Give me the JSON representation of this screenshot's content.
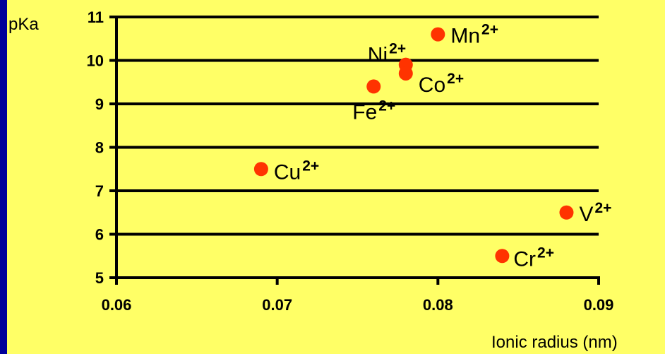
{
  "chart_data": {
    "type": "scatter",
    "ylabel": "pKa",
    "xlabel": "Ionic radius (nm)",
    "xlim": [
      0.06,
      0.09
    ],
    "ylim": [
      5,
      11
    ],
    "x_ticks": [
      0.06,
      0.07,
      0.08,
      0.09
    ],
    "x_tick_labels": [
      "0.06",
      "0.07",
      "0.08",
      "0.09"
    ],
    "y_ticks": [
      5,
      6,
      7,
      8,
      9,
      10,
      11
    ],
    "grid": "horizontal",
    "marker_color": "#ff3300",
    "points": [
      {
        "ion": "Cu",
        "charge": "2+",
        "x": 0.069,
        "y": 7.5
      },
      {
        "ion": "Fe",
        "charge": "2+",
        "x": 0.076,
        "y": 9.4
      },
      {
        "ion": "Ni",
        "charge": "2+",
        "x": 0.078,
        "y": 9.9
      },
      {
        "ion": "Co",
        "charge": "2+",
        "x": 0.078,
        "y": 9.7
      },
      {
        "ion": "Mn",
        "charge": "2+",
        "x": 0.08,
        "y": 10.6
      },
      {
        "ion": "Cr",
        "charge": "2+",
        "x": 0.084,
        "y": 5.5
      },
      {
        "ion": "V",
        "charge": "2+",
        "x": 0.088,
        "y": 6.5
      }
    ]
  }
}
